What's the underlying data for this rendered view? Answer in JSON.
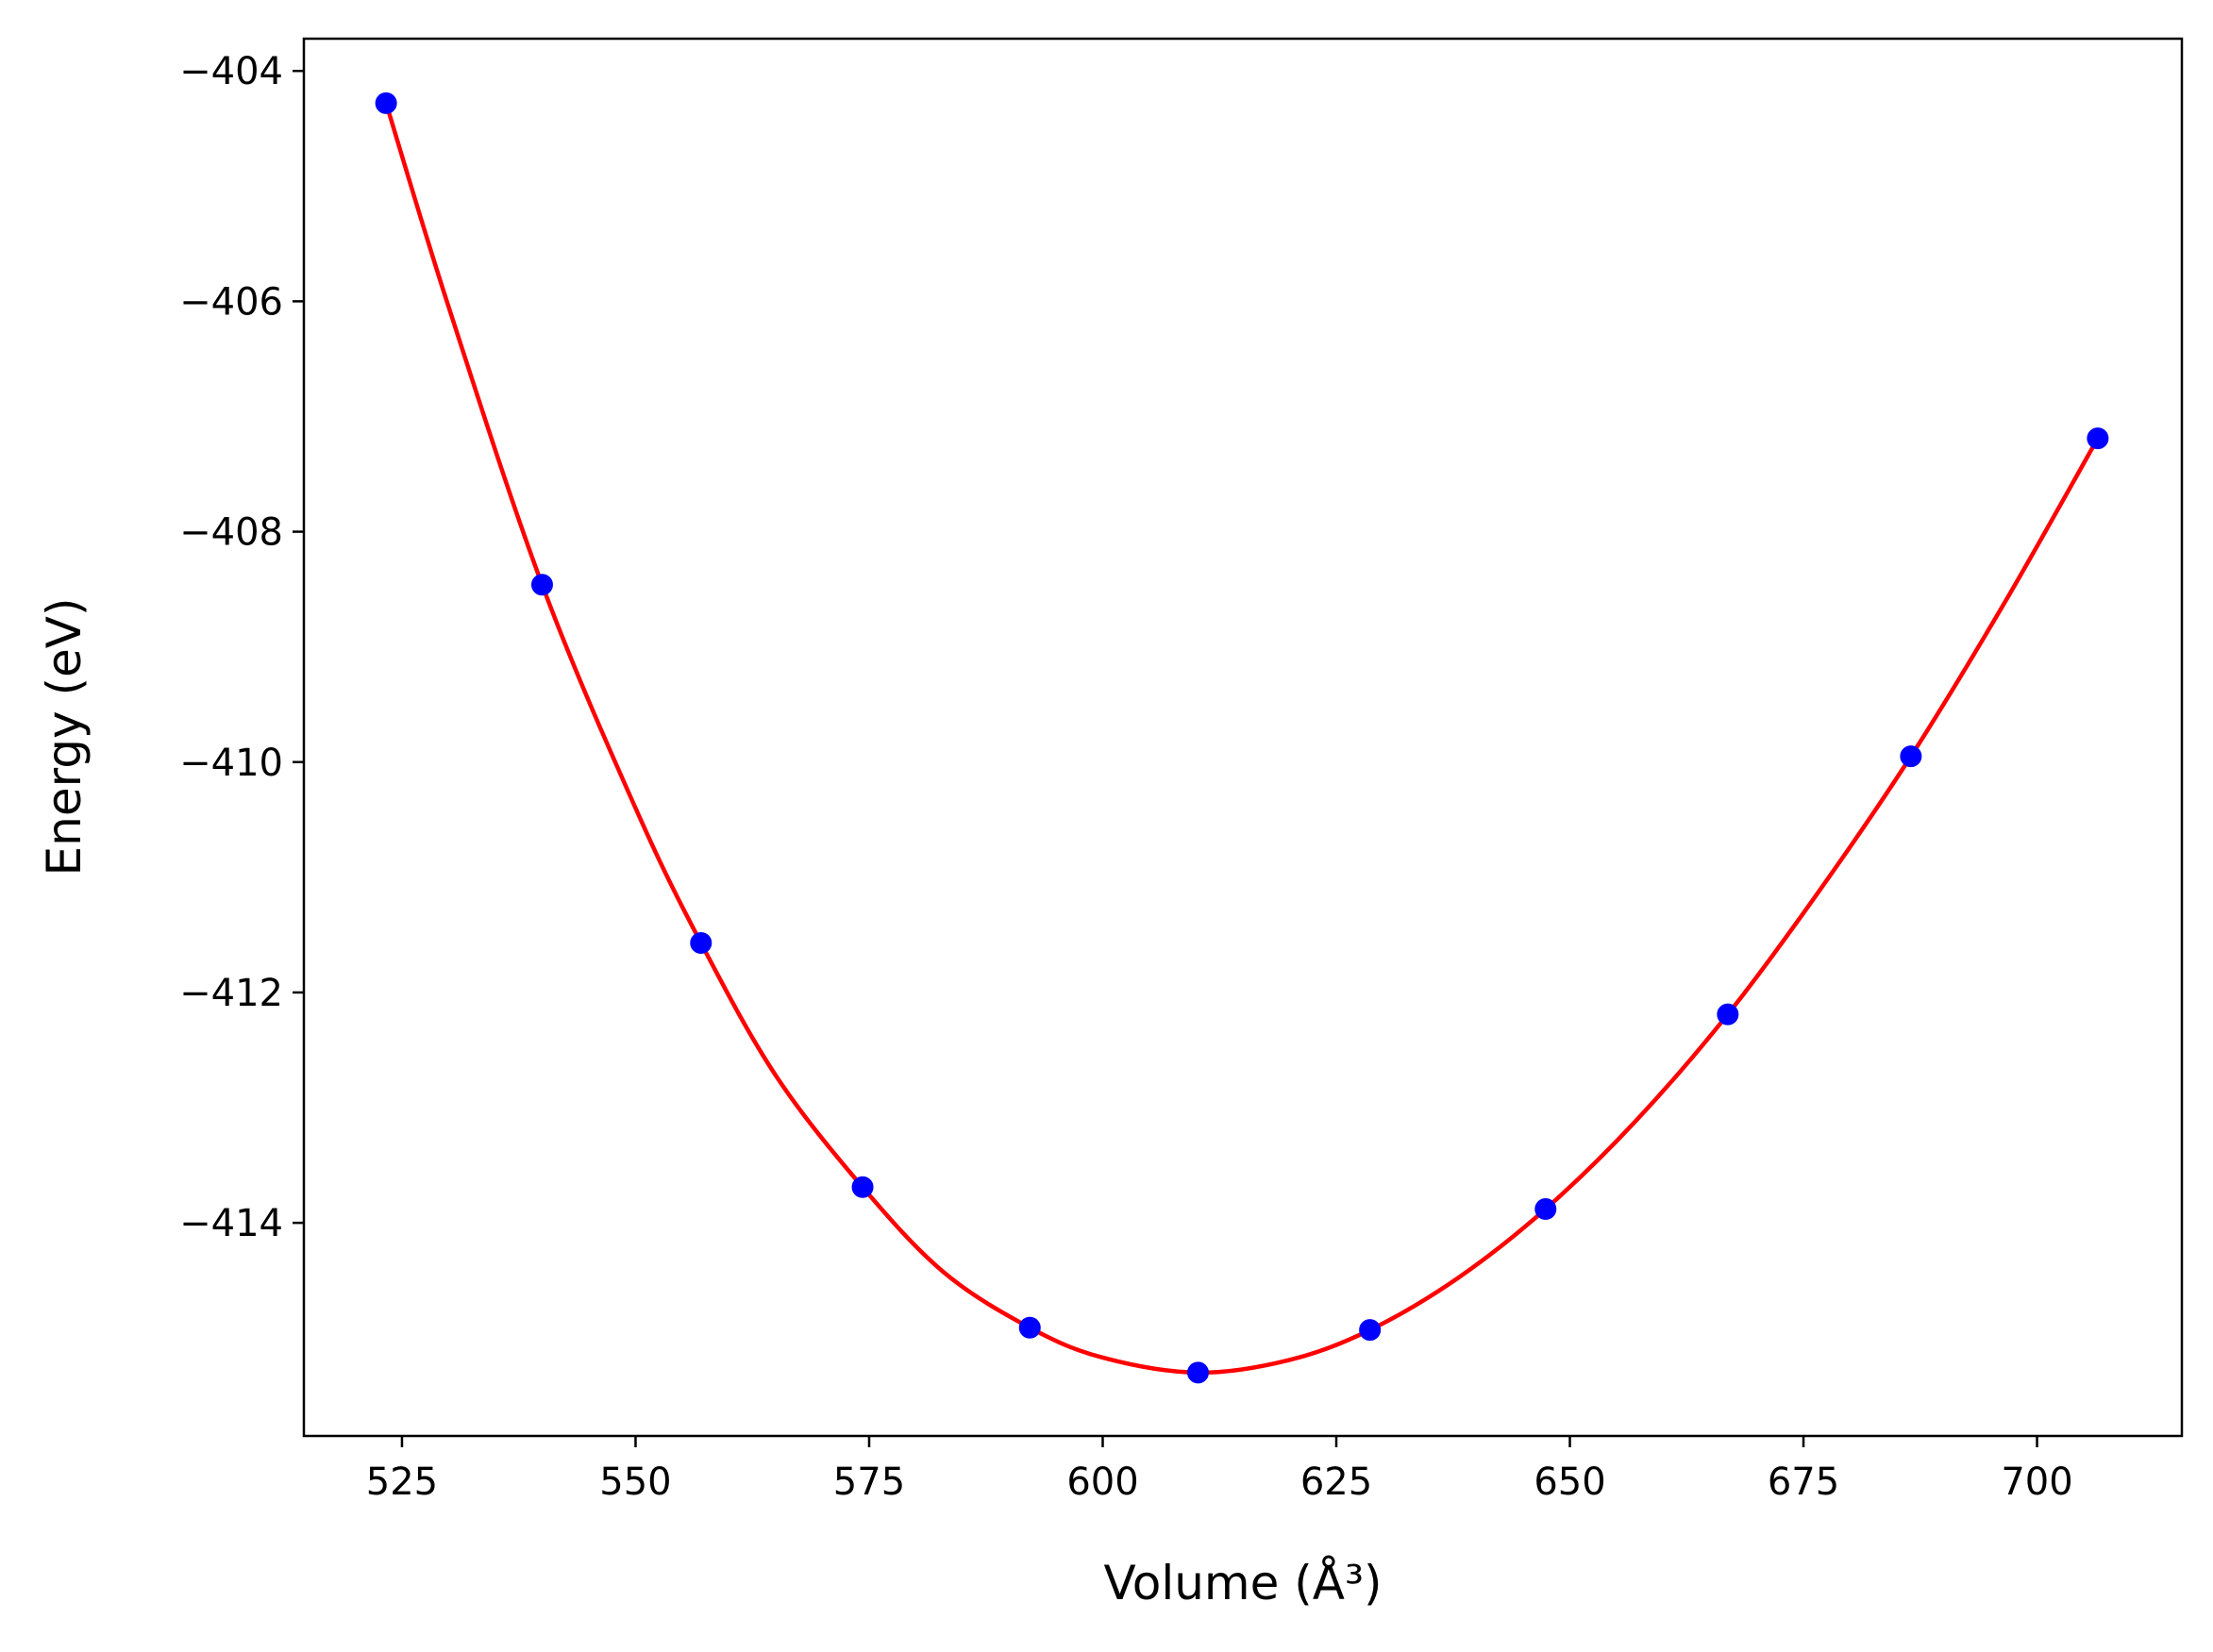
{
  "chart_data": {
    "type": "scatter",
    "title": "",
    "xlabel": "Volume (Å³)",
    "ylabel": "Energy (eV)",
    "xlim": [
      514.5,
      715.5
    ],
    "ylim": [
      -415.85,
      -403.72
    ],
    "x_ticks": [
      525,
      550,
      575,
      600,
      625,
      650,
      675,
      700
    ],
    "y_ticks": [
      -404,
      -406,
      -408,
      -410,
      -412,
      -414
    ],
    "x_tick_labels": [
      "525",
      "550",
      "575",
      "600",
      "625",
      "650",
      "675",
      "700"
    ],
    "y_tick_labels": [
      "−404",
      "−406",
      "−408",
      "−410",
      "−412",
      "−414"
    ],
    "grid": false,
    "legend": "none",
    "series": [
      {
        "kind": "points",
        "color": "#0000ff",
        "marker": "circle",
        "x": [
          523.3,
          540.0,
          557.0,
          574.3,
          592.2,
          610.2,
          628.6,
          647.4,
          666.9,
          686.5,
          706.5
        ],
        "y": [
          -404.28,
          -408.46,
          -411.57,
          -413.69,
          -414.91,
          -415.3,
          -414.93,
          -413.88,
          -412.19,
          -409.95,
          -407.19
        ]
      },
      {
        "kind": "fit-curve",
        "color": "#ff0000",
        "x": [
          523.3,
          530.0,
          540.0,
          550.0,
          557.0,
          565.0,
          574.3,
          583.0,
          592.2,
          600.0,
          610.2,
          620.0,
          628.6,
          638.0,
          647.4,
          657.0,
          666.9,
          676.5,
          686.5,
          696.5,
          706.5
        ],
        "y": [
          -404.28,
          -406.05,
          -408.46,
          -410.4,
          -411.57,
          -412.72,
          -413.69,
          -414.43,
          -414.91,
          -415.17,
          -415.3,
          -415.19,
          -414.93,
          -414.48,
          -413.88,
          -413.12,
          -412.19,
          -411.14,
          -409.95,
          -408.62,
          -407.19
        ]
      }
    ]
  }
}
